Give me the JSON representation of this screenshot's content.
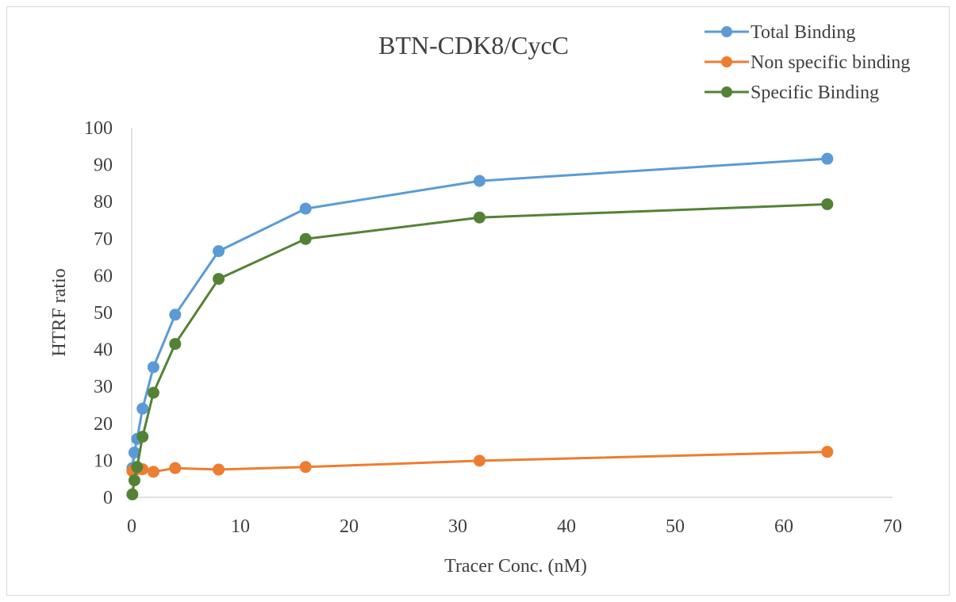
{
  "chart_data": {
    "type": "line",
    "title": "BTN-CDK8/CycC",
    "xlabel": "Tracer Conc. (nM)",
    "ylabel": "HTRF ratio",
    "xlim": [
      0,
      70
    ],
    "ylim": [
      0,
      100
    ],
    "xticks": [
      0,
      10,
      20,
      30,
      40,
      50,
      60,
      70
    ],
    "yticks": [
      0,
      10,
      20,
      30,
      40,
      50,
      60,
      70,
      80,
      90,
      100
    ],
    "grid": false,
    "legend_position": "top-right",
    "series": [
      {
        "name": "Total Binding",
        "color": "#5b9bd5",
        "x": [
          0.0625,
          0.25,
          0.5,
          1,
          2,
          4,
          8,
          16,
          32,
          64
        ],
        "y": [
          7.9,
          12.1,
          15.8,
          24.0,
          35.2,
          49.4,
          66.6,
          78.1,
          85.6,
          91.6
        ]
      },
      {
        "name": "Non specific binding",
        "color": "#ed7d31",
        "x": [
          0.0625,
          0.25,
          0.5,
          1,
          2,
          4,
          8,
          16,
          32,
          64
        ],
        "y": [
          7.1,
          7.5,
          7.6,
          7.6,
          6.9,
          7.9,
          7.5,
          8.2,
          9.9,
          12.3
        ]
      },
      {
        "name": "Specific Binding",
        "color": "#548235",
        "x": [
          0.0625,
          0.25,
          0.5,
          1,
          2,
          4,
          8,
          16,
          32,
          64
        ],
        "y": [
          0.8,
          4.6,
          8.2,
          16.4,
          28.3,
          41.5,
          59.1,
          69.9,
          75.7,
          79.3
        ]
      }
    ]
  }
}
